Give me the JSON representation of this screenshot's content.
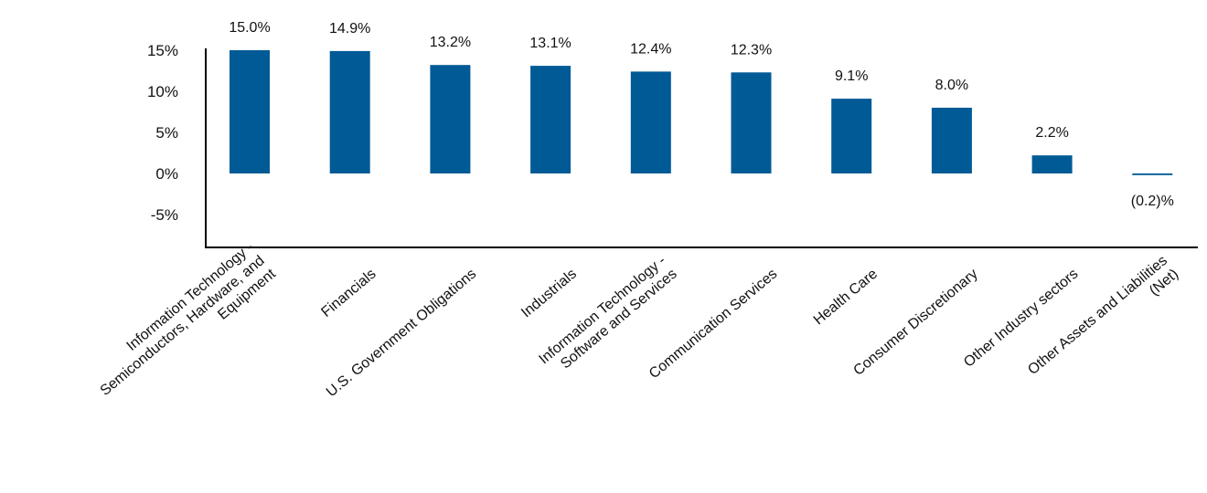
{
  "chart_data": {
    "type": "bar",
    "title": "",
    "xlabel": "",
    "ylabel": "",
    "ylim": [
      -9,
      15
    ],
    "yticks": [
      -5,
      0,
      5,
      10,
      15
    ],
    "ytick_labels": [
      "-5%",
      "0%",
      "5%",
      "10%",
      "15%"
    ],
    "grid": false,
    "bar_color": "#005a96",
    "categories": [
      [
        "Information Technology -",
        "Semiconductors, Hardware, and",
        "Equipment"
      ],
      [
        "Financials"
      ],
      [
        "U.S. Government Obligations"
      ],
      [
        "Industrials"
      ],
      [
        "Information Technology -",
        "Software and Services"
      ],
      [
        "Communication Services"
      ],
      [
        "Health Care"
      ],
      [
        "Consumer Discretionary"
      ],
      [
        "Other Industry sectors"
      ],
      [
        "Other Assets and Liabilities",
        "(Net)"
      ]
    ],
    "values": [
      15.0,
      14.9,
      13.2,
      13.1,
      12.4,
      12.3,
      9.1,
      8.0,
      2.2,
      -0.2
    ],
    "data_labels": [
      "15.0%",
      "14.9%",
      "13.2%",
      "13.1%",
      "12.4%",
      "12.3%",
      "9.1%",
      "8.0%",
      "2.2%",
      "(0.2)%"
    ]
  }
}
